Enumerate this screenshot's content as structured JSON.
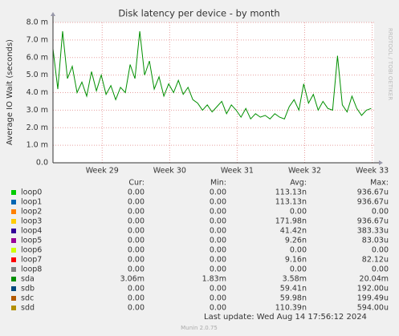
{
  "chart_data": {
    "type": "line",
    "title": "Disk latency per device - by month",
    "y_label": "Average IO Wait (seconds)",
    "side_text": "RRDTOOL / TOBI OETIKER",
    "x": [
      0,
      0.5,
      1,
      1.5,
      2,
      2.5,
      3,
      3.5,
      4,
      4.5,
      5,
      5.5,
      6,
      6.5,
      7,
      7.5,
      8,
      8.5,
      9,
      9.5,
      10,
      10.5,
      11,
      11.5,
      12,
      12.5,
      13,
      13.5,
      14,
      14.5,
      15,
      15.5,
      16,
      16.5,
      17,
      17.5,
      18,
      18.5,
      19,
      19.5,
      20,
      20.5,
      21,
      21.5,
      22,
      22.5,
      23,
      23.5,
      24,
      24.5,
      25,
      25.5,
      26,
      26.5,
      27,
      27.5,
      28,
      28.5,
      29,
      29.5,
      30,
      30.5,
      31,
      31.5,
      32,
      32.5,
      33
    ],
    "xlim": [
      0,
      33.3
    ],
    "xticks": [
      {
        "value": 5.1,
        "label": "Week 29"
      },
      {
        "value": 12.1,
        "label": "Week 30"
      },
      {
        "value": 19.1,
        "label": "Week 31"
      },
      {
        "value": 26.1,
        "label": "Week 32"
      },
      {
        "value": 33.1,
        "label": "Week 33"
      }
    ],
    "ylim": [
      0,
      8
    ],
    "yticks": [
      {
        "value": 0,
        "label": "0.0"
      },
      {
        "value": 1,
        "label": "1.0 m"
      },
      {
        "value": 2,
        "label": "2.0 m"
      },
      {
        "value": 3,
        "label": "3.0 m"
      },
      {
        "value": 4,
        "label": "4.0 m"
      },
      {
        "value": 5,
        "label": "5.0 m"
      },
      {
        "value": 6,
        "label": "6.0 m"
      },
      {
        "value": 7,
        "label": "7.0 m"
      },
      {
        "value": 8,
        "label": "8.0 m"
      }
    ],
    "grid": true,
    "columns": [
      "Cur:",
      "Min:",
      "Avg:",
      "Max:"
    ],
    "series": [
      {
        "name": "loop0",
        "color": "#00cc00",
        "stats": [
          "0.00",
          "0.00",
          "113.13n",
          "936.67u"
        ]
      },
      {
        "name": "loop1",
        "color": "#0066b3",
        "stats": [
          "0.00",
          "0.00",
          "113.13n",
          "936.67u"
        ]
      },
      {
        "name": "loop2",
        "color": "#ff8000",
        "stats": [
          "0.00",
          "0.00",
          "0.00",
          "0.00"
        ]
      },
      {
        "name": "loop3",
        "color": "#ffcc00",
        "stats": [
          "0.00",
          "0.00",
          "171.98n",
          "936.67u"
        ]
      },
      {
        "name": "loop4",
        "color": "#330099",
        "stats": [
          "0.00",
          "0.00",
          "41.42n",
          "383.33u"
        ]
      },
      {
        "name": "loop5",
        "color": "#990099",
        "stats": [
          "0.00",
          "0.00",
          "9.26n",
          "83.03u"
        ]
      },
      {
        "name": "loop6",
        "color": "#ccff00",
        "stats": [
          "0.00",
          "0.00",
          "0.00",
          "0.00"
        ]
      },
      {
        "name": "loop7",
        "color": "#ff0000",
        "stats": [
          "0.00",
          "0.00",
          "9.16n",
          "82.12u"
        ]
      },
      {
        "name": "loop8",
        "color": "#808080",
        "stats": [
          "0.00",
          "0.00",
          "0.00",
          "0.00"
        ]
      },
      {
        "name": "sda",
        "color": "#008f00",
        "stats": [
          "3.06m",
          "1.83m",
          "3.58m",
          "20.04m"
        ],
        "values": [
          6.5,
          4.2,
          7.5,
          4.8,
          5.5,
          4.0,
          4.6,
          3.8,
          5.2,
          4.1,
          5.0,
          3.9,
          4.4,
          3.6,
          4.3,
          4.0,
          5.6,
          4.8,
          7.5,
          5.0,
          5.8,
          4.2,
          4.9,
          3.8,
          4.5,
          4.0,
          4.7,
          3.9,
          4.3,
          3.6,
          3.4,
          3.0,
          3.3,
          2.9,
          3.2,
          3.5,
          2.8,
          3.3,
          3.0,
          2.6,
          3.1,
          2.5,
          2.8,
          2.6,
          2.7,
          2.5,
          2.8,
          2.6,
          2.5,
          3.2,
          3.6,
          3.0,
          4.5,
          3.4,
          3.9,
          3.0,
          3.5,
          3.1,
          3.0,
          6.1,
          3.3,
          2.9,
          3.8,
          3.1,
          2.7,
          3.0,
          3.1
        ]
      },
      {
        "name": "sdb",
        "color": "#00487d",
        "stats": [
          "0.00",
          "0.00",
          "59.41n",
          "192.00u"
        ]
      },
      {
        "name": "sdc",
        "color": "#b35a00",
        "stats": [
          "0.00",
          "0.00",
          "59.98n",
          "199.49u"
        ]
      },
      {
        "name": "sdd",
        "color": "#b38f00",
        "stats": [
          "0.00",
          "0.00",
          "110.39n",
          "594.00u"
        ]
      }
    ],
    "last_update": "Last update:  Wed Aug 14 17:56:12 2024",
    "footer": "Munin 2.0.75"
  }
}
